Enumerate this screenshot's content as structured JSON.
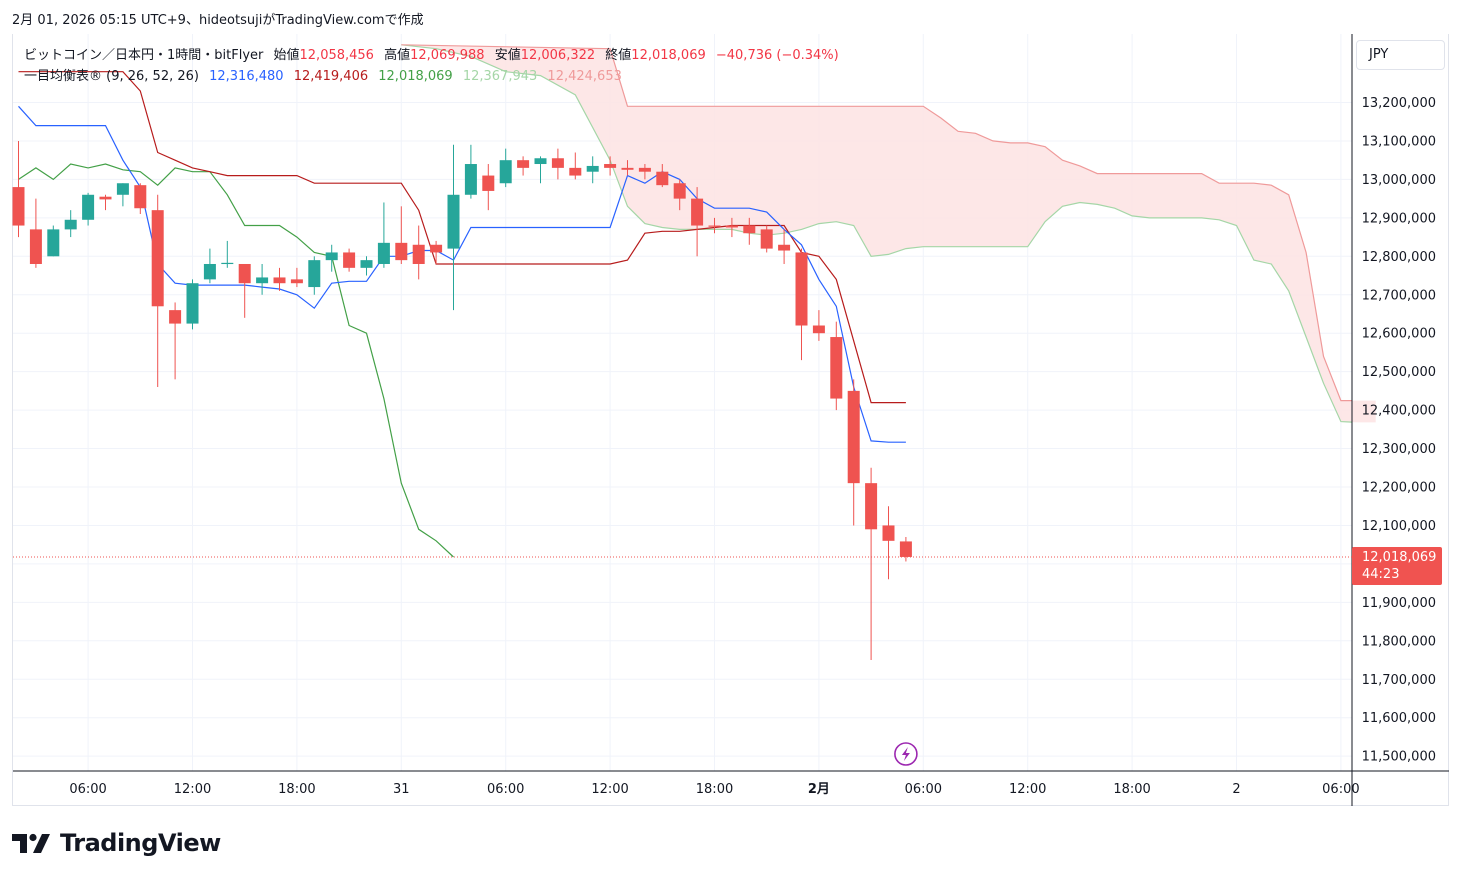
{
  "header": {
    "caption": "2月 01, 2026 05:15 UTC+9、hideotsujiがTradingView.comで作成"
  },
  "legend": {
    "symbol": "ビットコイン／日本円・1時間・bitFlyer",
    "open_label": "始値",
    "open": "12,058,456",
    "high_label": "高値",
    "high": "12,069,988",
    "low_label": "安値",
    "low": "12,006,322",
    "close_label": "終値",
    "close": "12,018,069",
    "change": "−40,736 (−0.34%)",
    "indicator": "一目均衡表® (9, 26, 52, 26)",
    "tenkan": "12,316,480",
    "kijun": "12,419,406",
    "chikou": "12,018,069",
    "senkou_a": "12,367,943",
    "senkou_b": "12,424,653"
  },
  "currency": "JPY",
  "price_tag": {
    "price": "12,018,069",
    "countdown": "44:23"
  },
  "brand": "TradingView",
  "colors": {
    "up": "#26a69a",
    "down": "#ef5350",
    "tenkan": "#2962ff",
    "kijun": "#b71c1c",
    "chikou": "#43a047",
    "span_a": "#a5d6a7",
    "span_b": "#ef9a9a",
    "cloud": "#fde3e3"
  },
  "chart_data": {
    "type": "candlestick",
    "y_axis": {
      "min": 11450000,
      "max": 13350000,
      "ticks": [
        11500000,
        11600000,
        11700000,
        11800000,
        11900000,
        12000000,
        12100000,
        12200000,
        12300000,
        12400000,
        12500000,
        12600000,
        12700000,
        12800000,
        12900000,
        13000000,
        13100000,
        13200000
      ]
    },
    "y_tick_labels": [
      "11,500,000",
      "11,600,000",
      "11,700,000",
      "11,800,000",
      "11,900,000",
      "12,000,000",
      "12,100,000",
      "12,200,000",
      "12,300,000",
      "12,400,000",
      "12,500,000",
      "12,600,000",
      "12,700,000",
      "12,800,000",
      "12,900,000",
      "13,000,000",
      "13,100,000",
      "13,200,000"
    ],
    "x_ticks": [
      {
        "t": 4,
        "label": "06:00"
      },
      {
        "t": 10,
        "label": "12:00"
      },
      {
        "t": 16,
        "label": "18:00"
      },
      {
        "t": 22,
        "label": "31"
      },
      {
        "t": 28,
        "label": "06:00"
      },
      {
        "t": 34,
        "label": "12:00"
      },
      {
        "t": 40,
        "label": "18:00"
      },
      {
        "t": 46,
        "label": "2月",
        "bold": true
      },
      {
        "t": 52,
        "label": "06:00"
      },
      {
        "t": 58,
        "label": "12:00"
      },
      {
        "t": 64,
        "label": "18:00"
      },
      {
        "t": 70,
        "label": "2"
      },
      {
        "t": 76,
        "label": "06:00"
      }
    ],
    "candles": [
      [
        0,
        12980000,
        13100000,
        12850000,
        12880000
      ],
      [
        1,
        12870000,
        12950000,
        12770000,
        12780000
      ],
      [
        2,
        12800000,
        12880000,
        12800000,
        12870000
      ],
      [
        3,
        12870000,
        12920000,
        12850000,
        12895000
      ],
      [
        4,
        12895000,
        12965000,
        12880000,
        12960000
      ],
      [
        5,
        12955000,
        12960000,
        12920000,
        12948000
      ],
      [
        6,
        12960000,
        12990000,
        12930000,
        12990000
      ],
      [
        7,
        12985000,
        12990000,
        12910000,
        12925000
      ],
      [
        8,
        12920000,
        12960000,
        12460000,
        12670000
      ],
      [
        9,
        12660000,
        12680000,
        12480000,
        12625000
      ],
      [
        10,
        12625000,
        12740000,
        12610000,
        12730000
      ],
      [
        11,
        12740000,
        12820000,
        12730000,
        12780000
      ],
      [
        12,
        12780000,
        12840000,
        12770000,
        12783000
      ],
      [
        13,
        12780000,
        12780000,
        12640000,
        12730000
      ],
      [
        14,
        12730000,
        12780000,
        12700000,
        12745000
      ],
      [
        15,
        12745000,
        12770000,
        12710000,
        12730000
      ],
      [
        16,
        12740000,
        12770000,
        12720000,
        12730000
      ],
      [
        17,
        12720000,
        12800000,
        12700000,
        12790000
      ],
      [
        18,
        12790000,
        12830000,
        12760000,
        12810000
      ],
      [
        19,
        12810000,
        12820000,
        12760000,
        12770000
      ],
      [
        20,
        12770000,
        12800000,
        12750000,
        12790000
      ],
      [
        21,
        12780000,
        12940000,
        12770000,
        12835000
      ],
      [
        22,
        12835000,
        12930000,
        12780000,
        12790000
      ],
      [
        23,
        12830000,
        12880000,
        12740000,
        12780000
      ],
      [
        24,
        12830000,
        12840000,
        12780000,
        12810000
      ],
      [
        25,
        12820000,
        13090000,
        12660000,
        12960000
      ],
      [
        26,
        12960000,
        13090000,
        12950000,
        13040000
      ],
      [
        27,
        13010000,
        13040000,
        12920000,
        12970000
      ],
      [
        28,
        12990000,
        13080000,
        12980000,
        13050000
      ],
      [
        29,
        13050000,
        13060000,
        13010000,
        13030000
      ],
      [
        30,
        13040000,
        13060000,
        12990000,
        13055000
      ],
      [
        31,
        13055000,
        13080000,
        13000000,
        13030000
      ],
      [
        32,
        13030000,
        13070000,
        13000000,
        13010000
      ],
      [
        33,
        13020000,
        13060000,
        12990000,
        13035000
      ],
      [
        34,
        13040000,
        13060000,
        13010000,
        13030000
      ],
      [
        35,
        13030000,
        13050000,
        13010000,
        13025000
      ],
      [
        36,
        13030000,
        13040000,
        13000000,
        13020000
      ],
      [
        37,
        13020000,
        13040000,
        12980000,
        12985000
      ],
      [
        38,
        12990000,
        13000000,
        12920000,
        12950000
      ],
      [
        39,
        12950000,
        12980000,
        12800000,
        12880000
      ],
      [
        40,
        12880000,
        12900000,
        12860000,
        12878000
      ],
      [
        41,
        12880000,
        12900000,
        12850000,
        12875000
      ],
      [
        42,
        12880000,
        12900000,
        12830000,
        12860000
      ],
      [
        43,
        12870000,
        12880000,
        12810000,
        12820000
      ],
      [
        44,
        12830000,
        12870000,
        12780000,
        12815000
      ],
      [
        45,
        12810000,
        12820000,
        12530000,
        12620000
      ],
      [
        46,
        12620000,
        12660000,
        12580000,
        12600000
      ],
      [
        47,
        12590000,
        12630000,
        12400000,
        12430000
      ],
      [
        48,
        12450000,
        12480000,
        12100000,
        12210000
      ],
      [
        49,
        12210000,
        12250000,
        11750000,
        12090000
      ],
      [
        50,
        12100000,
        12150000,
        11960000,
        12060000
      ],
      [
        51,
        12058456,
        12069988,
        12006322,
        12018069
      ]
    ],
    "tenkan_sen": [
      [
        0,
        13190000
      ],
      [
        1,
        13140000
      ],
      [
        2,
        13140000
      ],
      [
        3,
        13140000
      ],
      [
        4,
        13140000
      ],
      [
        5,
        13140000
      ],
      [
        6,
        13050000
      ],
      [
        7,
        12980000
      ],
      [
        8,
        12780000
      ],
      [
        9,
        12730000
      ],
      [
        10,
        12725000
      ],
      [
        11,
        12725000
      ],
      [
        12,
        12725000
      ],
      [
        13,
        12725000
      ],
      [
        14,
        12720000
      ],
      [
        15,
        12715000
      ],
      [
        16,
        12700000
      ],
      [
        17,
        12665000
      ],
      [
        18,
        12730000
      ],
      [
        19,
        12735000
      ],
      [
        20,
        12735000
      ],
      [
        21,
        12800000
      ],
      [
        22,
        12800000
      ],
      [
        23,
        12815000
      ],
      [
        24,
        12815000
      ],
      [
        25,
        12790000
      ],
      [
        26,
        12875000
      ],
      [
        27,
        12875000
      ],
      [
        28,
        12875000
      ],
      [
        29,
        12875000
      ],
      [
        30,
        12875000
      ],
      [
        31,
        12875000
      ],
      [
        32,
        12875000
      ],
      [
        33,
        12875000
      ],
      [
        34,
        12875000
      ],
      [
        35,
        13010000
      ],
      [
        36,
        12990000
      ],
      [
        37,
        13020000
      ],
      [
        38,
        13000000
      ],
      [
        39,
        12950000
      ],
      [
        40,
        12925000
      ],
      [
        41,
        12925000
      ],
      [
        42,
        12925000
      ],
      [
        43,
        12915000
      ],
      [
        44,
        12870000
      ],
      [
        45,
        12830000
      ],
      [
        46,
        12740000
      ],
      [
        47,
        12670000
      ],
      [
        48,
        12460000
      ],
      [
        49,
        12320000
      ],
      [
        50,
        12316480
      ],
      [
        51,
        12316480
      ]
    ],
    "kijun_sen": [
      [
        0,
        13280000
      ],
      [
        1,
        13280000
      ],
      [
        2,
        13280000
      ],
      [
        3,
        13280000
      ],
      [
        4,
        13280000
      ],
      [
        5,
        13280000
      ],
      [
        6,
        13280000
      ],
      [
        7,
        13230000
      ],
      [
        8,
        13070000
      ],
      [
        9,
        13050000
      ],
      [
        10,
        13030000
      ],
      [
        11,
        13020000
      ],
      [
        12,
        13010000
      ],
      [
        13,
        13010000
      ],
      [
        14,
        13010000
      ],
      [
        15,
        13010000
      ],
      [
        16,
        13010000
      ],
      [
        17,
        12990000
      ],
      [
        18,
        12990000
      ],
      [
        19,
        12990000
      ],
      [
        20,
        12990000
      ],
      [
        21,
        12990000
      ],
      [
        22,
        12990000
      ],
      [
        23,
        12920000
      ],
      [
        24,
        12780000
      ],
      [
        25,
        12780000
      ],
      [
        26,
        12780000
      ],
      [
        27,
        12780000
      ],
      [
        28,
        12780000
      ],
      [
        29,
        12780000
      ],
      [
        30,
        12780000
      ],
      [
        31,
        12780000
      ],
      [
        32,
        12780000
      ],
      [
        33,
        12780000
      ],
      [
        34,
        12780000
      ],
      [
        35,
        12790000
      ],
      [
        36,
        12860000
      ],
      [
        37,
        12865000
      ],
      [
        38,
        12865000
      ],
      [
        39,
        12870000
      ],
      [
        40,
        12875000
      ],
      [
        41,
        12880000
      ],
      [
        42,
        12880000
      ],
      [
        43,
        12880000
      ],
      [
        44,
        12880000
      ],
      [
        45,
        12810000
      ],
      [
        46,
        12800000
      ],
      [
        47,
        12740000
      ],
      [
        48,
        12580000
      ],
      [
        49,
        12419406
      ],
      [
        50,
        12419406
      ],
      [
        51,
        12419406
      ]
    ],
    "chikou_span": [
      [
        0,
        13000000
      ],
      [
        1,
        13030000
      ],
      [
        2,
        13000000
      ],
      [
        3,
        13040000
      ],
      [
        4,
        13030000
      ],
      [
        5,
        13040000
      ],
      [
        6,
        13025000
      ],
      [
        7,
        13020000
      ],
      [
        8,
        12985000
      ],
      [
        9,
        13030000
      ],
      [
        10,
        13020000
      ],
      [
        11,
        13020000
      ],
      [
        12,
        12960000
      ],
      [
        13,
        12880000
      ],
      [
        14,
        12880000
      ],
      [
        15,
        12880000
      ],
      [
        16,
        12850000
      ],
      [
        17,
        12810000
      ],
      [
        18,
        12800000
      ],
      [
        19,
        12620000
      ],
      [
        20,
        12600000
      ],
      [
        21,
        12430000
      ],
      [
        22,
        12210000
      ],
      [
        23,
        12090000
      ],
      [
        24,
        12060000
      ],
      [
        25,
        12018069
      ]
    ],
    "senkou_span_a": [
      [
        22,
        13350000
      ],
      [
        24,
        13340000
      ],
      [
        26,
        13320000
      ],
      [
        28,
        13280000
      ],
      [
        30,
        13270000
      ],
      [
        32,
        13220000
      ],
      [
        34,
        13050000
      ],
      [
        35,
        12930000
      ],
      [
        36,
        12885000
      ],
      [
        37,
        12875000
      ],
      [
        38,
        12870000
      ],
      [
        39,
        12870000
      ],
      [
        40,
        12870000
      ],
      [
        41,
        12870000
      ],
      [
        42,
        12860000
      ],
      [
        43,
        12855000
      ],
      [
        44,
        12860000
      ],
      [
        45,
        12870000
      ],
      [
        46,
        12885000
      ],
      [
        47,
        12890000
      ],
      [
        48,
        12880000
      ],
      [
        49,
        12800000
      ],
      [
        50,
        12805000
      ],
      [
        51,
        12820000
      ],
      [
        52,
        12825000
      ],
      [
        53,
        12825000
      ],
      [
        54,
        12825000
      ],
      [
        55,
        12825000
      ],
      [
        56,
        12825000
      ],
      [
        57,
        12825000
      ],
      [
        58,
        12825000
      ],
      [
        59,
        12890000
      ],
      [
        60,
        12930000
      ],
      [
        61,
        12940000
      ],
      [
        62,
        12935000
      ],
      [
        63,
        12925000
      ],
      [
        64,
        12905000
      ],
      [
        65,
        12900000
      ],
      [
        66,
        12900000
      ],
      [
        67,
        12900000
      ],
      [
        68,
        12900000
      ],
      [
        69,
        12895000
      ],
      [
        70,
        12880000
      ],
      [
        71,
        12790000
      ],
      [
        72,
        12780000
      ],
      [
        73,
        12710000
      ],
      [
        74,
        12590000
      ],
      [
        75,
        12470000
      ],
      [
        76,
        12370000
      ],
      [
        77,
        12367943
      ],
      [
        78,
        12367943
      ]
    ],
    "senkou_span_b": [
      [
        22,
        13350000
      ],
      [
        34,
        13340000
      ],
      [
        35,
        13190000
      ],
      [
        40,
        13190000
      ],
      [
        45,
        13190000
      ],
      [
        50,
        13190000
      ],
      [
        52,
        13190000
      ],
      [
        53,
        13160000
      ],
      [
        54,
        13125000
      ],
      [
        55,
        13120000
      ],
      [
        56,
        13100000
      ],
      [
        57,
        13095000
      ],
      [
        58,
        13095000
      ],
      [
        59,
        13085000
      ],
      [
        60,
        13050000
      ],
      [
        61,
        13035000
      ],
      [
        62,
        13015000
      ],
      [
        63,
        13015000
      ],
      [
        64,
        13015000
      ],
      [
        65,
        13015000
      ],
      [
        66,
        13015000
      ],
      [
        67,
        13015000
      ],
      [
        68,
        13015000
      ],
      [
        69,
        12990000
      ],
      [
        70,
        12990000
      ],
      [
        71,
        12990000
      ],
      [
        72,
        12985000
      ],
      [
        73,
        12960000
      ],
      [
        74,
        12810000
      ],
      [
        75,
        12540000
      ],
      [
        76,
        12424653
      ],
      [
        77,
        12424653
      ],
      [
        78,
        12424653
      ]
    ],
    "last_price": 12018069
  }
}
